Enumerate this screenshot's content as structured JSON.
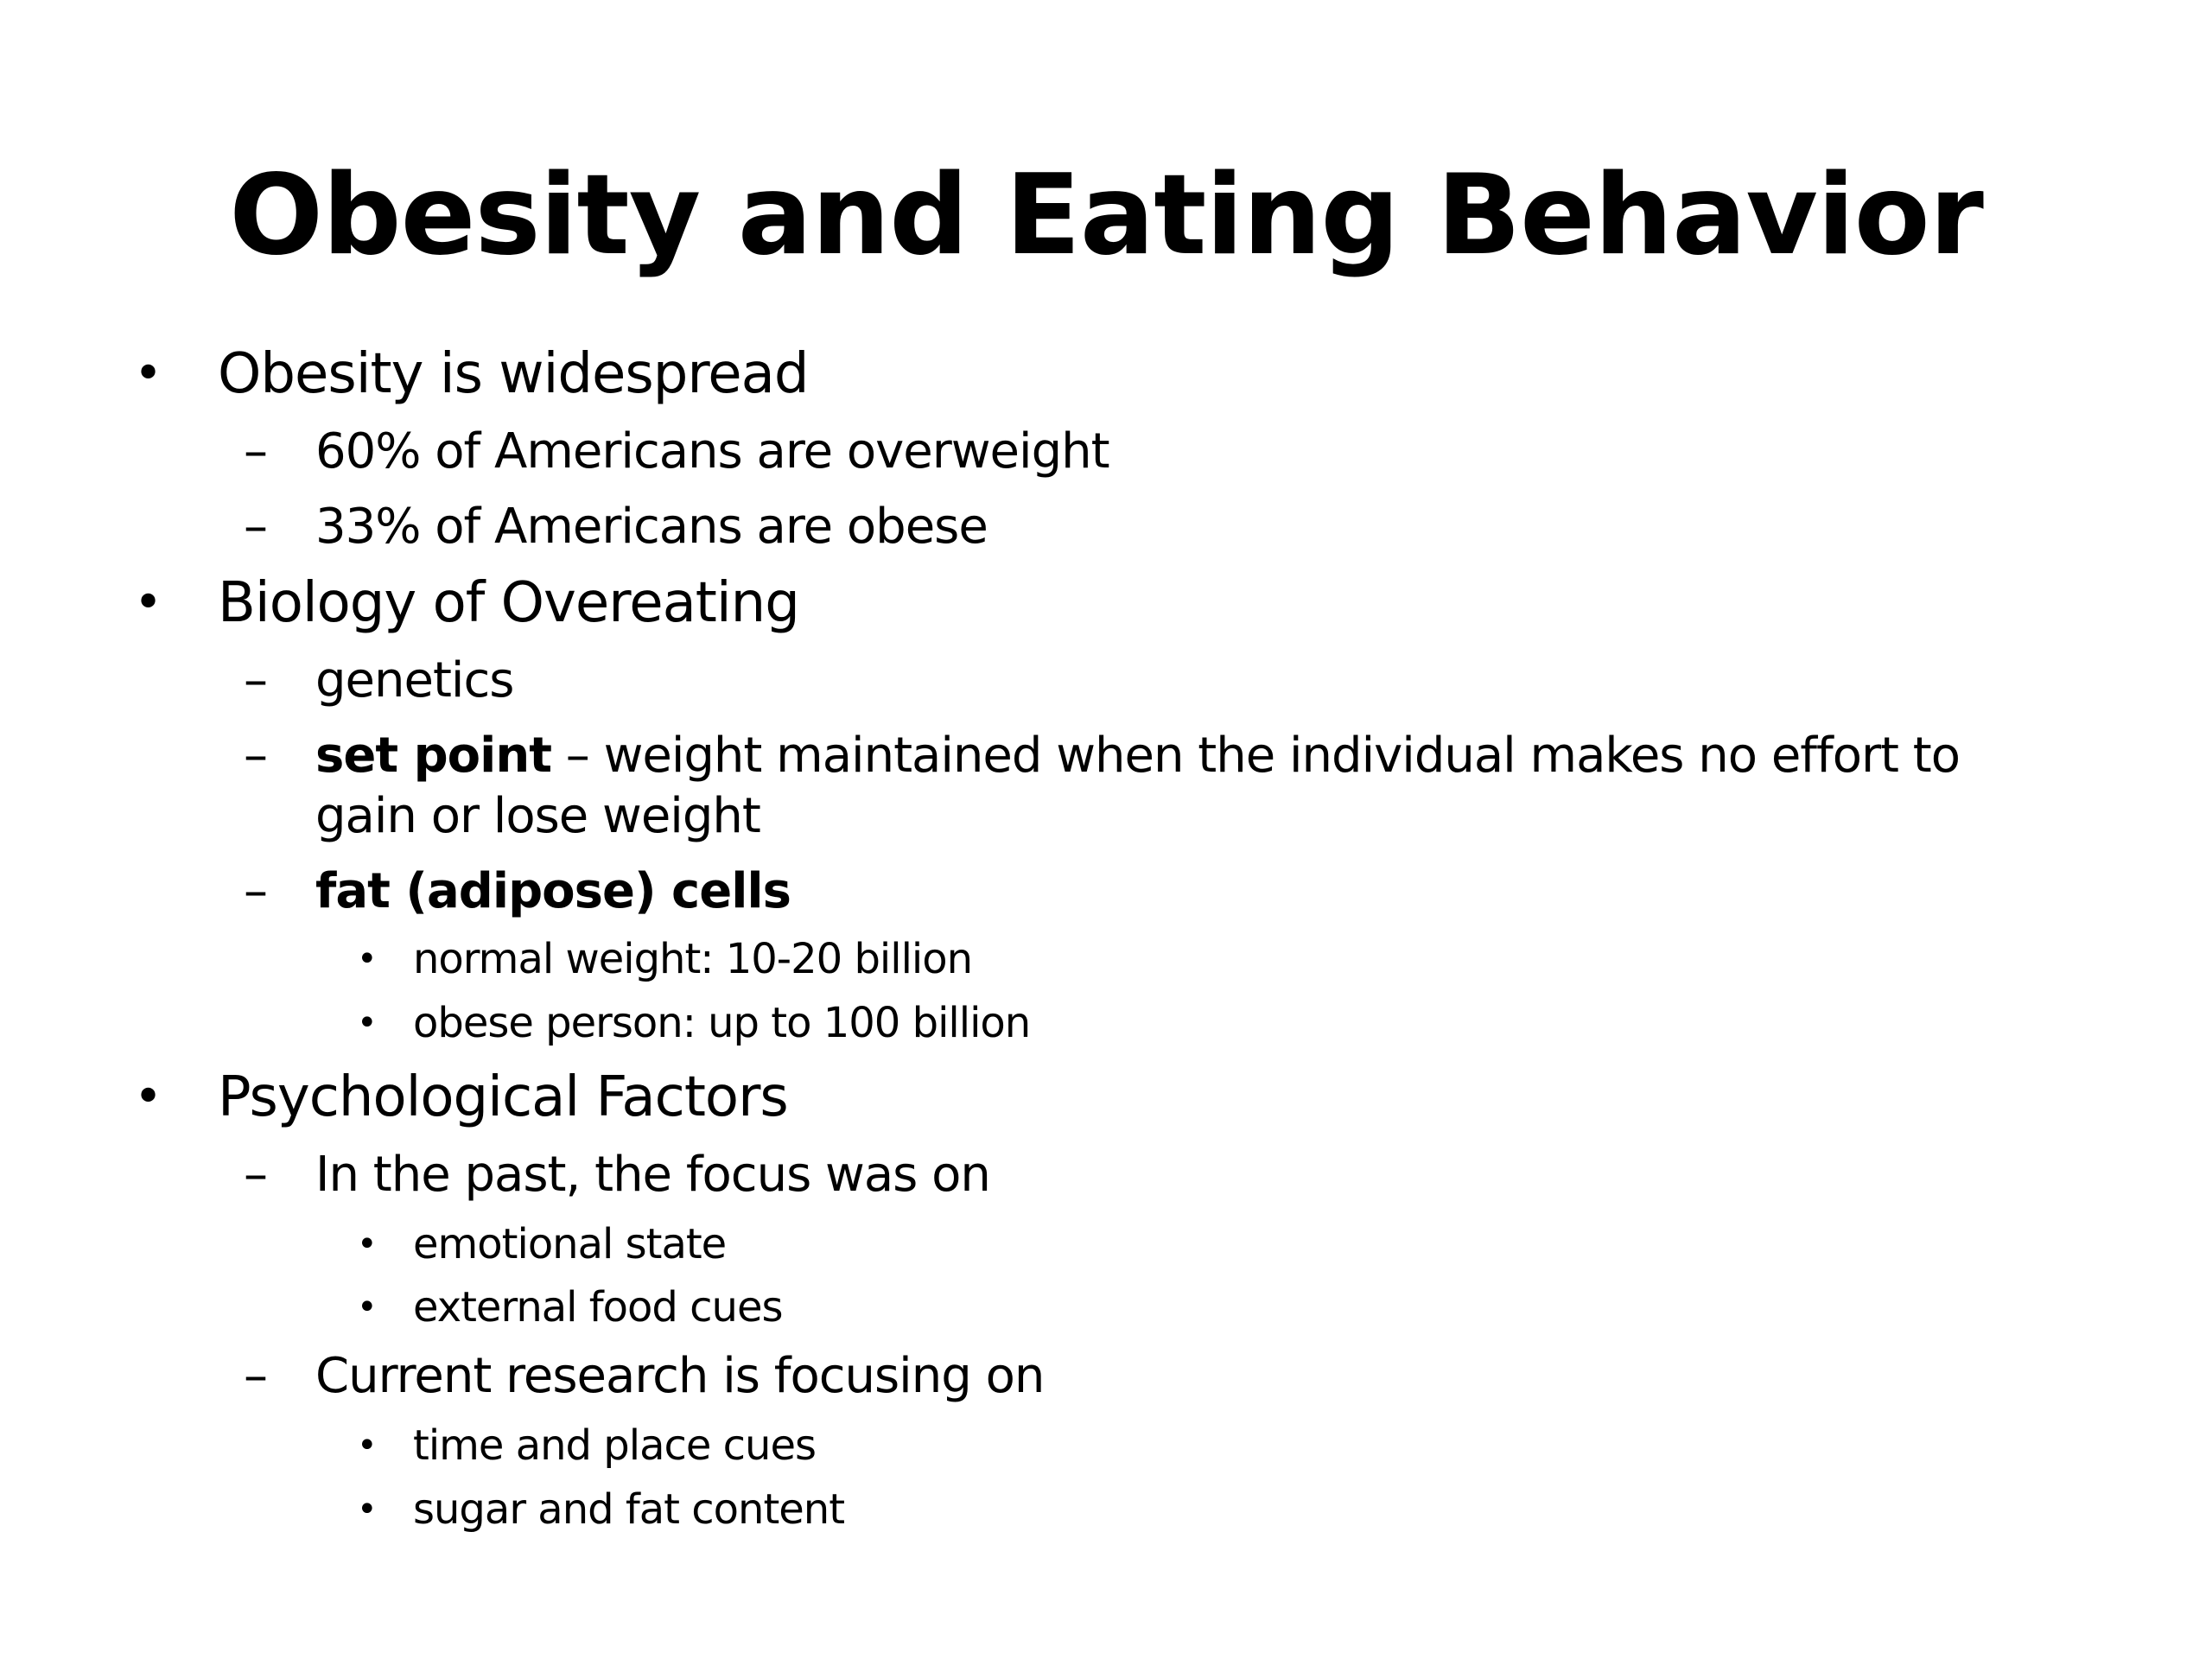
{
  "slide": {
    "title": "Obesity and Eating Behavior",
    "bullet_glyph": "•",
    "dash_glyph": "–",
    "items": [
      {
        "text": "Obesity is widespread"
      },
      {
        "text": "60% of Americans are overweight"
      },
      {
        "text": "33% of Americans are obese"
      },
      {
        "text": "Biology of Overeating"
      },
      {
        "text": "genetics"
      },
      {
        "term": "set point",
        "text": " – weight maintained when the individual makes no effort to",
        "continuation": "gain or lose weight"
      },
      {
        "term": "fat (adipose) cells"
      },
      {
        "text": "normal weight: 10-20 billion"
      },
      {
        "text": "obese person: up to 100 billion"
      },
      {
        "text": "Psychological Factors"
      },
      {
        "text": "In the past, the focus was on"
      },
      {
        "text": "emotional state"
      },
      {
        "text": "external food cues"
      },
      {
        "text": "Current research is focusing on"
      },
      {
        "text": "time and place cues"
      },
      {
        "text": "sugar and fat content"
      }
    ]
  }
}
